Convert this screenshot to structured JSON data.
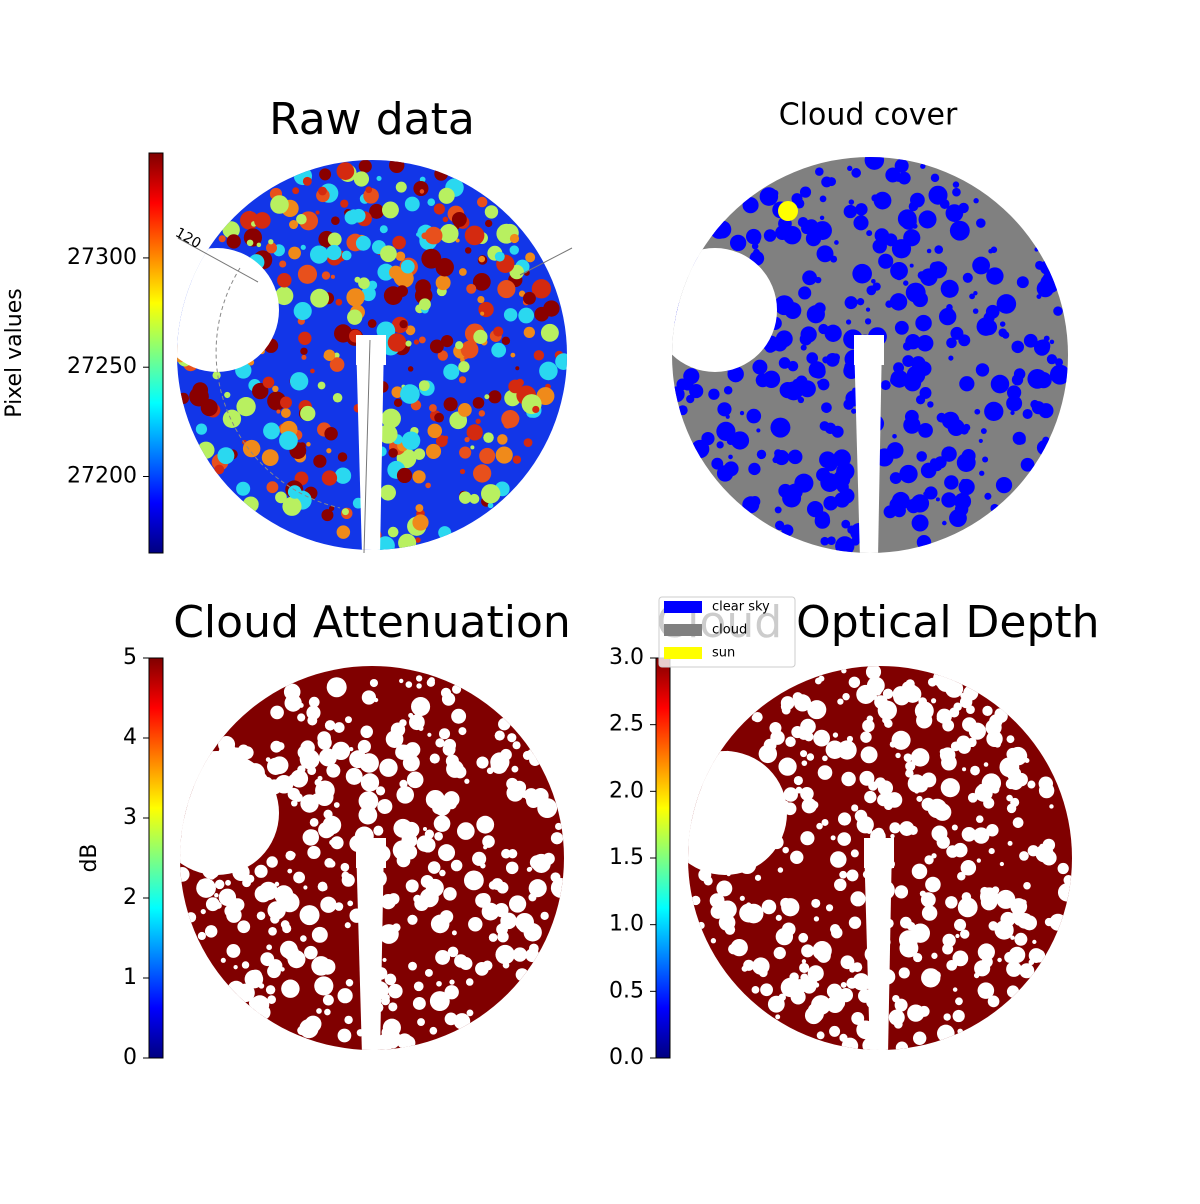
{
  "chart_data": [
    {
      "type": "image",
      "title": "Raw data",
      "colormap": "jet",
      "colorbar_label": "Pixel values",
      "ylim": [
        27165,
        27348
      ],
      "yticks": [
        27200,
        27250,
        27300
      ],
      "annotations": [
        "120"
      ]
    },
    {
      "type": "categorical-image",
      "title": "Cloud cover",
      "legend": [
        {
          "name": "clear sky",
          "color": "#0000ff"
        },
        {
          "name": "cloud",
          "color": "#808080"
        },
        {
          "name": "sun",
          "color": "#ffff00"
        }
      ]
    },
    {
      "type": "image",
      "title": "Cloud Attenuation",
      "colormap": "jet",
      "colorbar_label": "dB",
      "ylim": [
        0,
        5
      ],
      "yticks": [
        0,
        1,
        2,
        3,
        4,
        5
      ]
    },
    {
      "type": "image",
      "title": "Cloud Optical Depth",
      "colormap": "jet",
      "ylim": [
        0,
        3
      ],
      "yticks": [
        {
          "value": 0,
          "label": "0.0"
        },
        0.5,
        {
          "value": 1,
          "label": "1.0"
        },
        1.5,
        {
          "value": 2,
          "label": "2.0"
        },
        2.5,
        {
          "value": 3,
          "label": "3.0"
        }
      ]
    }
  ]
}
